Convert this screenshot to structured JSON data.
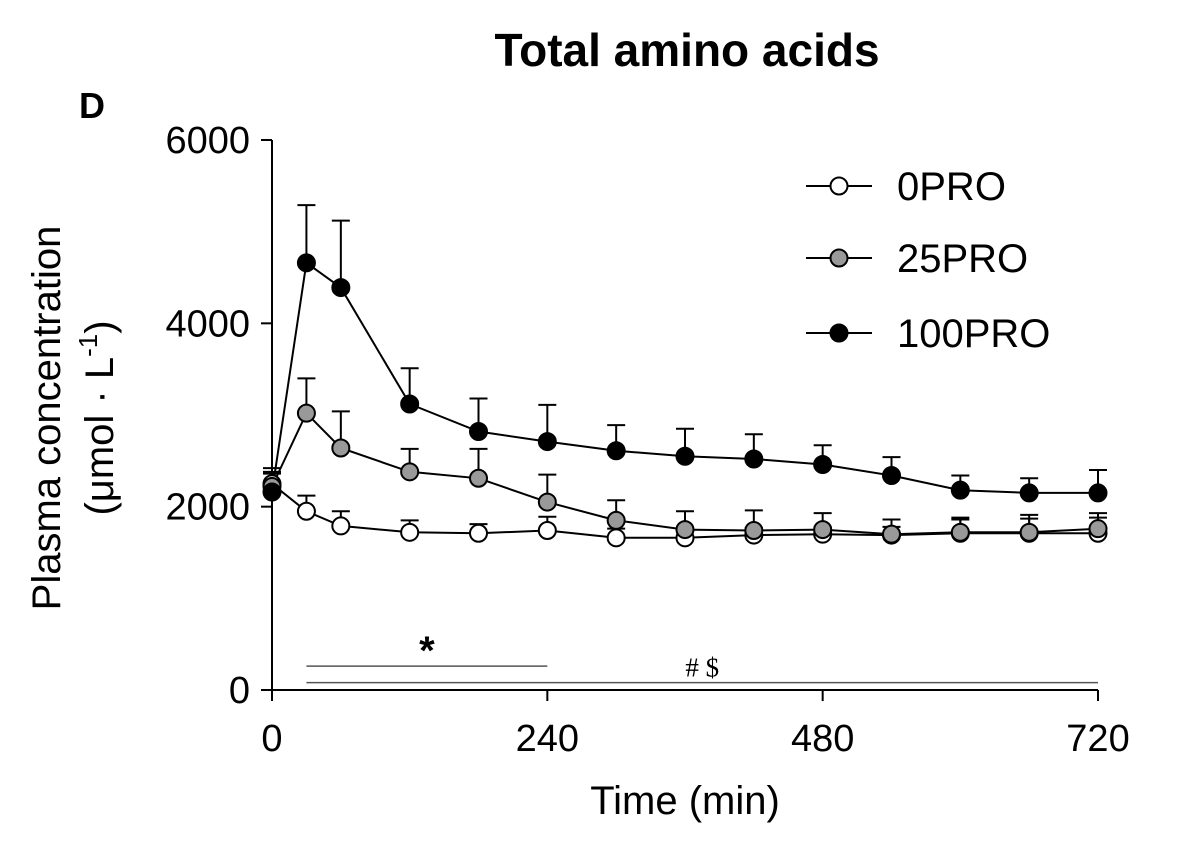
{
  "chart_data": {
    "type": "line",
    "panel_label": "D",
    "title": "Total amino acids",
    "xlabel": "Time (min)",
    "ylabel_line1": "Plasma concentration",
    "ylabel_line2_prefix": "(μmol · L",
    "ylabel_line2_sup": "-1",
    "ylabel_line2_suffix": ")",
    "xlim": [
      0,
      720
    ],
    "ylim": [
      0,
      6000
    ],
    "xticks": [
      0,
      240,
      480,
      720
    ],
    "yticks": [
      0,
      2000,
      4000,
      6000
    ],
    "x": [
      0,
      30,
      60,
      120,
      180,
      240,
      300,
      360,
      420,
      480,
      540,
      600,
      660,
      720
    ],
    "series": [
      {
        "name": "0PRO",
        "color": "#ffffff",
        "values": [
          2250,
          1950,
          1790,
          1720,
          1710,
          1740,
          1660,
          1660,
          1690,
          1700,
          1690,
          1710,
          1710,
          1710
        ],
        "errors": [
          130,
          170,
          160,
          130,
          100,
          150,
          100,
          90,
          80,
          80,
          90,
          150,
          160,
          170
        ]
      },
      {
        "name": "25PRO",
        "color": "#999999",
        "values": [
          2220,
          3020,
          2640,
          2380,
          2310,
          2050,
          1850,
          1750,
          1740,
          1750,
          1700,
          1720,
          1720,
          1760
        ],
        "errors": [
          140,
          380,
          400,
          250,
          320,
          300,
          220,
          200,
          220,
          180,
          160,
          160,
          190,
          170
        ]
      },
      {
        "name": "100PRO",
        "color": "#000000",
        "values": [
          2160,
          4660,
          4390,
          3120,
          2820,
          2710,
          2610,
          2550,
          2520,
          2460,
          2340,
          2180,
          2150,
          2150
        ],
        "errors": [
          260,
          630,
          730,
          390,
          360,
          400,
          280,
          300,
          270,
          210,
          200,
          160,
          160,
          250
        ]
      }
    ],
    "significance": [
      {
        "label": "*",
        "x_range": [
          30,
          240
        ]
      },
      {
        "label": "# $",
        "x_range": [
          30,
          720
        ]
      }
    ],
    "legend_position": "top-right"
  }
}
